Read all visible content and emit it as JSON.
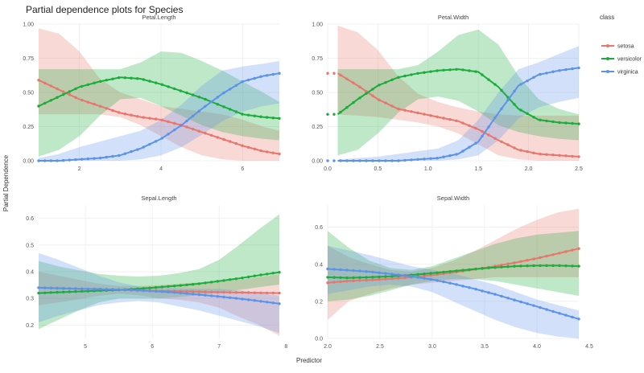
{
  "title": "Partial dependence plots for Species",
  "xlabel": "Predictor",
  "ylabel": "Partial Dependence",
  "legend": {
    "title": "class",
    "placement": "right",
    "entries": [
      {
        "name": "setosa",
        "color": "#e8766d"
      },
      {
        "name": "versicolor",
        "color": "#1aad3c"
      },
      {
        "name": "virginica",
        "color": "#5c93ea"
      }
    ]
  },
  "chart_data": [
    {
      "type": "line",
      "title": "Petal.Length",
      "xlim": [
        1.0,
        6.9
      ],
      "ylim": [
        0,
        1.0
      ],
      "xticks": [
        2,
        4,
        6
      ],
      "yticks": [
        0.0,
        0.25,
        0.5,
        0.75,
        1.0
      ],
      "ytick_labels": [
        "0.00",
        "0.25",
        "0.50",
        "0.75",
        "1.00"
      ],
      "series": [
        {
          "name": "setosa",
          "x": [
            1.0,
            1.5,
            2.0,
            2.5,
            3.0,
            3.5,
            4.0,
            4.5,
            5.0,
            5.5,
            6.0,
            6.5,
            6.9
          ],
          "y": [
            0.59,
            0.52,
            0.45,
            0.4,
            0.35,
            0.32,
            0.3,
            0.26,
            0.21,
            0.16,
            0.11,
            0.07,
            0.05
          ],
          "lo": [
            0.34,
            0.34,
            0.34,
            0.34,
            0.32,
            0.26,
            0.18,
            0.1,
            0.04,
            0.01,
            0.0,
            0.0,
            0.0
          ],
          "hi": [
            0.97,
            0.93,
            0.8,
            0.6,
            0.5,
            0.45,
            0.4,
            0.38,
            0.36,
            0.34,
            0.3,
            0.25,
            0.22
          ]
        },
        {
          "name": "versicolor",
          "x": [
            1.0,
            1.5,
            2.0,
            2.5,
            3.0,
            3.5,
            4.0,
            4.5,
            5.0,
            5.5,
            6.0,
            6.5,
            6.9
          ],
          "y": [
            0.4,
            0.47,
            0.54,
            0.58,
            0.61,
            0.6,
            0.56,
            0.51,
            0.46,
            0.4,
            0.34,
            0.32,
            0.31
          ],
          "lo": [
            0.03,
            0.08,
            0.18,
            0.33,
            0.45,
            0.46,
            0.4,
            0.33,
            0.26,
            0.21,
            0.18,
            0.16,
            0.15
          ],
          "hi": [
            0.67,
            0.67,
            0.67,
            0.67,
            0.67,
            0.72,
            0.8,
            0.79,
            0.73,
            0.66,
            0.58,
            0.5,
            0.43
          ]
        },
        {
          "name": "virginica",
          "x": [
            1.0,
            1.5,
            2.0,
            2.5,
            3.0,
            3.5,
            4.0,
            4.5,
            5.0,
            5.5,
            6.0,
            6.5,
            6.9
          ],
          "y": [
            0.0,
            0.0,
            0.01,
            0.02,
            0.04,
            0.09,
            0.16,
            0.26,
            0.38,
            0.49,
            0.58,
            0.62,
            0.64
          ],
          "lo": [
            0.0,
            0.0,
            0.0,
            0.0,
            0.0,
            0.01,
            0.04,
            0.1,
            0.19,
            0.29,
            0.36,
            0.4,
            0.42
          ],
          "hi": [
            0.02,
            0.05,
            0.1,
            0.14,
            0.18,
            0.22,
            0.3,
            0.41,
            0.55,
            0.66,
            0.69,
            0.71,
            0.73
          ]
        }
      ]
    },
    {
      "type": "line",
      "title": "Petal.Width",
      "xlim": [
        0.0,
        2.5
      ],
      "ylim": [
        0,
        1.0
      ],
      "xticks": [
        0.0,
        0.5,
        1.0,
        1.5,
        2.0,
        2.5
      ],
      "xtick_labels": [
        "0.0",
        "0.5",
        "1.0",
        "1.5",
        "2.0",
        "2.5"
      ],
      "yticks": [
        0.0,
        0.25,
        0.5,
        0.75,
        1.0
      ],
      "ytick_labels": [
        "0.00",
        "0.25",
        "0.50",
        "0.75",
        "1.00"
      ],
      "series": [
        {
          "name": "setosa",
          "x": [
            0.1,
            0.3,
            0.5,
            0.7,
            0.9,
            1.1,
            1.3,
            1.5,
            1.7,
            1.9,
            2.1,
            2.3,
            2.5
          ],
          "y": [
            0.64,
            0.55,
            0.45,
            0.38,
            0.35,
            0.32,
            0.29,
            0.23,
            0.15,
            0.08,
            0.05,
            0.04,
            0.03
          ],
          "lo": [
            0.34,
            0.33,
            0.32,
            0.3,
            0.28,
            0.25,
            0.2,
            0.12,
            0.04,
            0.01,
            0.0,
            0.0,
            0.0
          ],
          "hi": [
            0.99,
            0.94,
            0.81,
            0.62,
            0.49,
            0.43,
            0.39,
            0.36,
            0.34,
            0.33,
            0.33,
            0.33,
            0.33
          ]
        },
        {
          "name": "versicolor",
          "x": [
            0.1,
            0.3,
            0.5,
            0.7,
            0.9,
            1.1,
            1.3,
            1.5,
            1.7,
            1.9,
            2.1,
            2.3,
            2.5
          ],
          "y": [
            0.34,
            0.45,
            0.55,
            0.61,
            0.64,
            0.66,
            0.67,
            0.65,
            0.54,
            0.38,
            0.3,
            0.28,
            0.27
          ],
          "lo": [
            0.04,
            0.08,
            0.2,
            0.35,
            0.45,
            0.47,
            0.44,
            0.36,
            0.26,
            0.21,
            0.18,
            0.16,
            0.15
          ],
          "hi": [
            0.67,
            0.67,
            0.67,
            0.67,
            0.7,
            0.8,
            0.92,
            0.96,
            0.85,
            0.62,
            0.45,
            0.38,
            0.34
          ]
        },
        {
          "name": "virginica",
          "x": [
            0.1,
            0.3,
            0.5,
            0.7,
            0.9,
            1.1,
            1.3,
            1.5,
            1.7,
            1.9,
            2.1,
            2.3,
            2.5
          ],
          "y": [
            0.0,
            0.0,
            0.0,
            0.0,
            0.01,
            0.02,
            0.05,
            0.14,
            0.35,
            0.55,
            0.63,
            0.66,
            0.68
          ],
          "lo": [
            0.0,
            0.0,
            0.0,
            0.0,
            0.0,
            0.0,
            0.01,
            0.04,
            0.15,
            0.31,
            0.39,
            0.43,
            0.46
          ],
          "hi": [
            0.01,
            0.02,
            0.03,
            0.05,
            0.07,
            0.09,
            0.15,
            0.3,
            0.5,
            0.67,
            0.72,
            0.78,
            0.84
          ]
        }
      ]
    },
    {
      "type": "line",
      "title": "Sepal.Length",
      "xlim": [
        4.3,
        7.9
      ],
      "ylim": [
        0.15,
        0.65
      ],
      "xticks": [
        5,
        6,
        7,
        8
      ],
      "yticks": [
        0.2,
        0.3,
        0.4,
        0.5,
        0.6
      ],
      "ytick_labels": [
        "0.2",
        "0.3",
        "0.4",
        "0.5",
        "0.6"
      ],
      "series": [
        {
          "name": "setosa",
          "x": [
            4.3,
            4.6,
            4.9,
            5.2,
            5.5,
            5.8,
            6.1,
            6.4,
            6.7,
            7.0,
            7.3,
            7.6,
            7.9
          ],
          "y": [
            0.34,
            0.338,
            0.336,
            0.334,
            0.332,
            0.33,
            0.328,
            0.327,
            0.325,
            0.323,
            0.322,
            0.321,
            0.32
          ],
          "lo": [
            0.275,
            0.285,
            0.297,
            0.31,
            0.318,
            0.312,
            0.3,
            0.295,
            0.285,
            0.265,
            0.23,
            0.2,
            0.16
          ],
          "hi": [
            0.4,
            0.385,
            0.37,
            0.355,
            0.346,
            0.346,
            0.35,
            0.355,
            0.36,
            0.365,
            0.37,
            0.38,
            0.39
          ]
        },
        {
          "name": "versicolor",
          "x": [
            4.3,
            4.6,
            4.9,
            5.2,
            5.5,
            5.8,
            6.1,
            6.4,
            6.7,
            7.0,
            7.3,
            7.6,
            7.9
          ],
          "y": [
            0.32,
            0.323,
            0.326,
            0.329,
            0.332,
            0.336,
            0.342,
            0.348,
            0.355,
            0.365,
            0.375,
            0.387,
            0.398
          ],
          "lo": [
            0.185,
            0.22,
            0.255,
            0.285,
            0.3,
            0.3,
            0.3,
            0.305,
            0.312,
            0.322,
            0.332,
            0.342,
            0.352
          ],
          "hi": [
            0.44,
            0.42,
            0.405,
            0.392,
            0.385,
            0.382,
            0.385,
            0.395,
            0.41,
            0.445,
            0.5,
            0.56,
            0.615
          ]
        },
        {
          "name": "virginica",
          "x": [
            4.3,
            4.6,
            4.9,
            5.2,
            5.5,
            5.8,
            6.1,
            6.4,
            6.7,
            7.0,
            7.3,
            7.6,
            7.9
          ],
          "y": [
            0.34,
            0.338,
            0.336,
            0.335,
            0.333,
            0.33,
            0.326,
            0.321,
            0.314,
            0.307,
            0.299,
            0.29,
            0.28
          ],
          "lo": [
            0.21,
            0.235,
            0.255,
            0.275,
            0.285,
            0.29,
            0.285,
            0.27,
            0.255,
            0.235,
            0.215,
            0.195,
            0.17
          ],
          "hi": [
            0.47,
            0.445,
            0.415,
            0.385,
            0.36,
            0.345,
            0.34,
            0.338,
            0.336,
            0.335,
            0.33,
            0.32,
            0.31
          ]
        }
      ]
    },
    {
      "type": "line",
      "title": "Sepal.Width",
      "xlim": [
        2.0,
        4.4
      ],
      "ylim": [
        0,
        0.72
      ],
      "xticks": [
        2.0,
        2.5,
        3.0,
        3.5,
        4.0,
        4.5
      ],
      "xtick_labels": [
        "2.0",
        "2.5",
        "3.0",
        "3.5",
        "4.0",
        "4.5"
      ],
      "yticks": [
        0.0,
        0.2,
        0.4,
        0.6
      ],
      "ytick_labels": [
        "0.0",
        "0.2",
        "0.4",
        "0.6"
      ],
      "series": [
        {
          "name": "setosa",
          "x": [
            2.0,
            2.2,
            2.4,
            2.6,
            2.8,
            3.0,
            3.2,
            3.4,
            3.6,
            3.8,
            4.0,
            4.2,
            4.4
          ],
          "y": [
            0.3,
            0.31,
            0.315,
            0.322,
            0.33,
            0.342,
            0.356,
            0.372,
            0.39,
            0.41,
            0.432,
            0.458,
            0.485
          ],
          "lo": [
            0.1,
            0.2,
            0.24,
            0.27,
            0.29,
            0.3,
            0.31,
            0.32,
            0.33,
            0.33,
            0.33,
            0.33,
            0.33
          ],
          "hi": [
            0.5,
            0.44,
            0.4,
            0.37,
            0.36,
            0.38,
            0.42,
            0.47,
            0.53,
            0.59,
            0.64,
            0.68,
            0.7
          ]
        },
        {
          "name": "versicolor",
          "x": [
            2.0,
            2.2,
            2.4,
            2.6,
            2.8,
            3.0,
            3.2,
            3.4,
            3.6,
            3.8,
            4.0,
            4.2,
            4.4
          ],
          "y": [
            0.33,
            0.327,
            0.33,
            0.335,
            0.342,
            0.352,
            0.363,
            0.374,
            0.383,
            0.39,
            0.393,
            0.393,
            0.39
          ],
          "lo": [
            0.2,
            0.21,
            0.23,
            0.26,
            0.29,
            0.31,
            0.32,
            0.32,
            0.31,
            0.29,
            0.27,
            0.25,
            0.23
          ],
          "hi": [
            0.58,
            0.49,
            0.42,
            0.38,
            0.37,
            0.39,
            0.43,
            0.47,
            0.51,
            0.54,
            0.56,
            0.57,
            0.58
          ]
        },
        {
          "name": "virginica",
          "x": [
            2.0,
            2.2,
            2.4,
            2.6,
            2.8,
            3.0,
            3.2,
            3.4,
            3.6,
            3.8,
            4.0,
            4.2,
            4.4
          ],
          "y": [
            0.375,
            0.368,
            0.36,
            0.348,
            0.335,
            0.318,
            0.295,
            0.268,
            0.238,
            0.205,
            0.172,
            0.138,
            0.105
          ],
          "lo": [
            0.24,
            0.26,
            0.28,
            0.29,
            0.28,
            0.25,
            0.2,
            0.15,
            0.1,
            0.06,
            0.03,
            0.01,
            0.0
          ],
          "hi": [
            0.5,
            0.475,
            0.45,
            0.42,
            0.39,
            0.37,
            0.35,
            0.32,
            0.29,
            0.25,
            0.21,
            0.18,
            0.15
          ]
        }
      ]
    }
  ]
}
